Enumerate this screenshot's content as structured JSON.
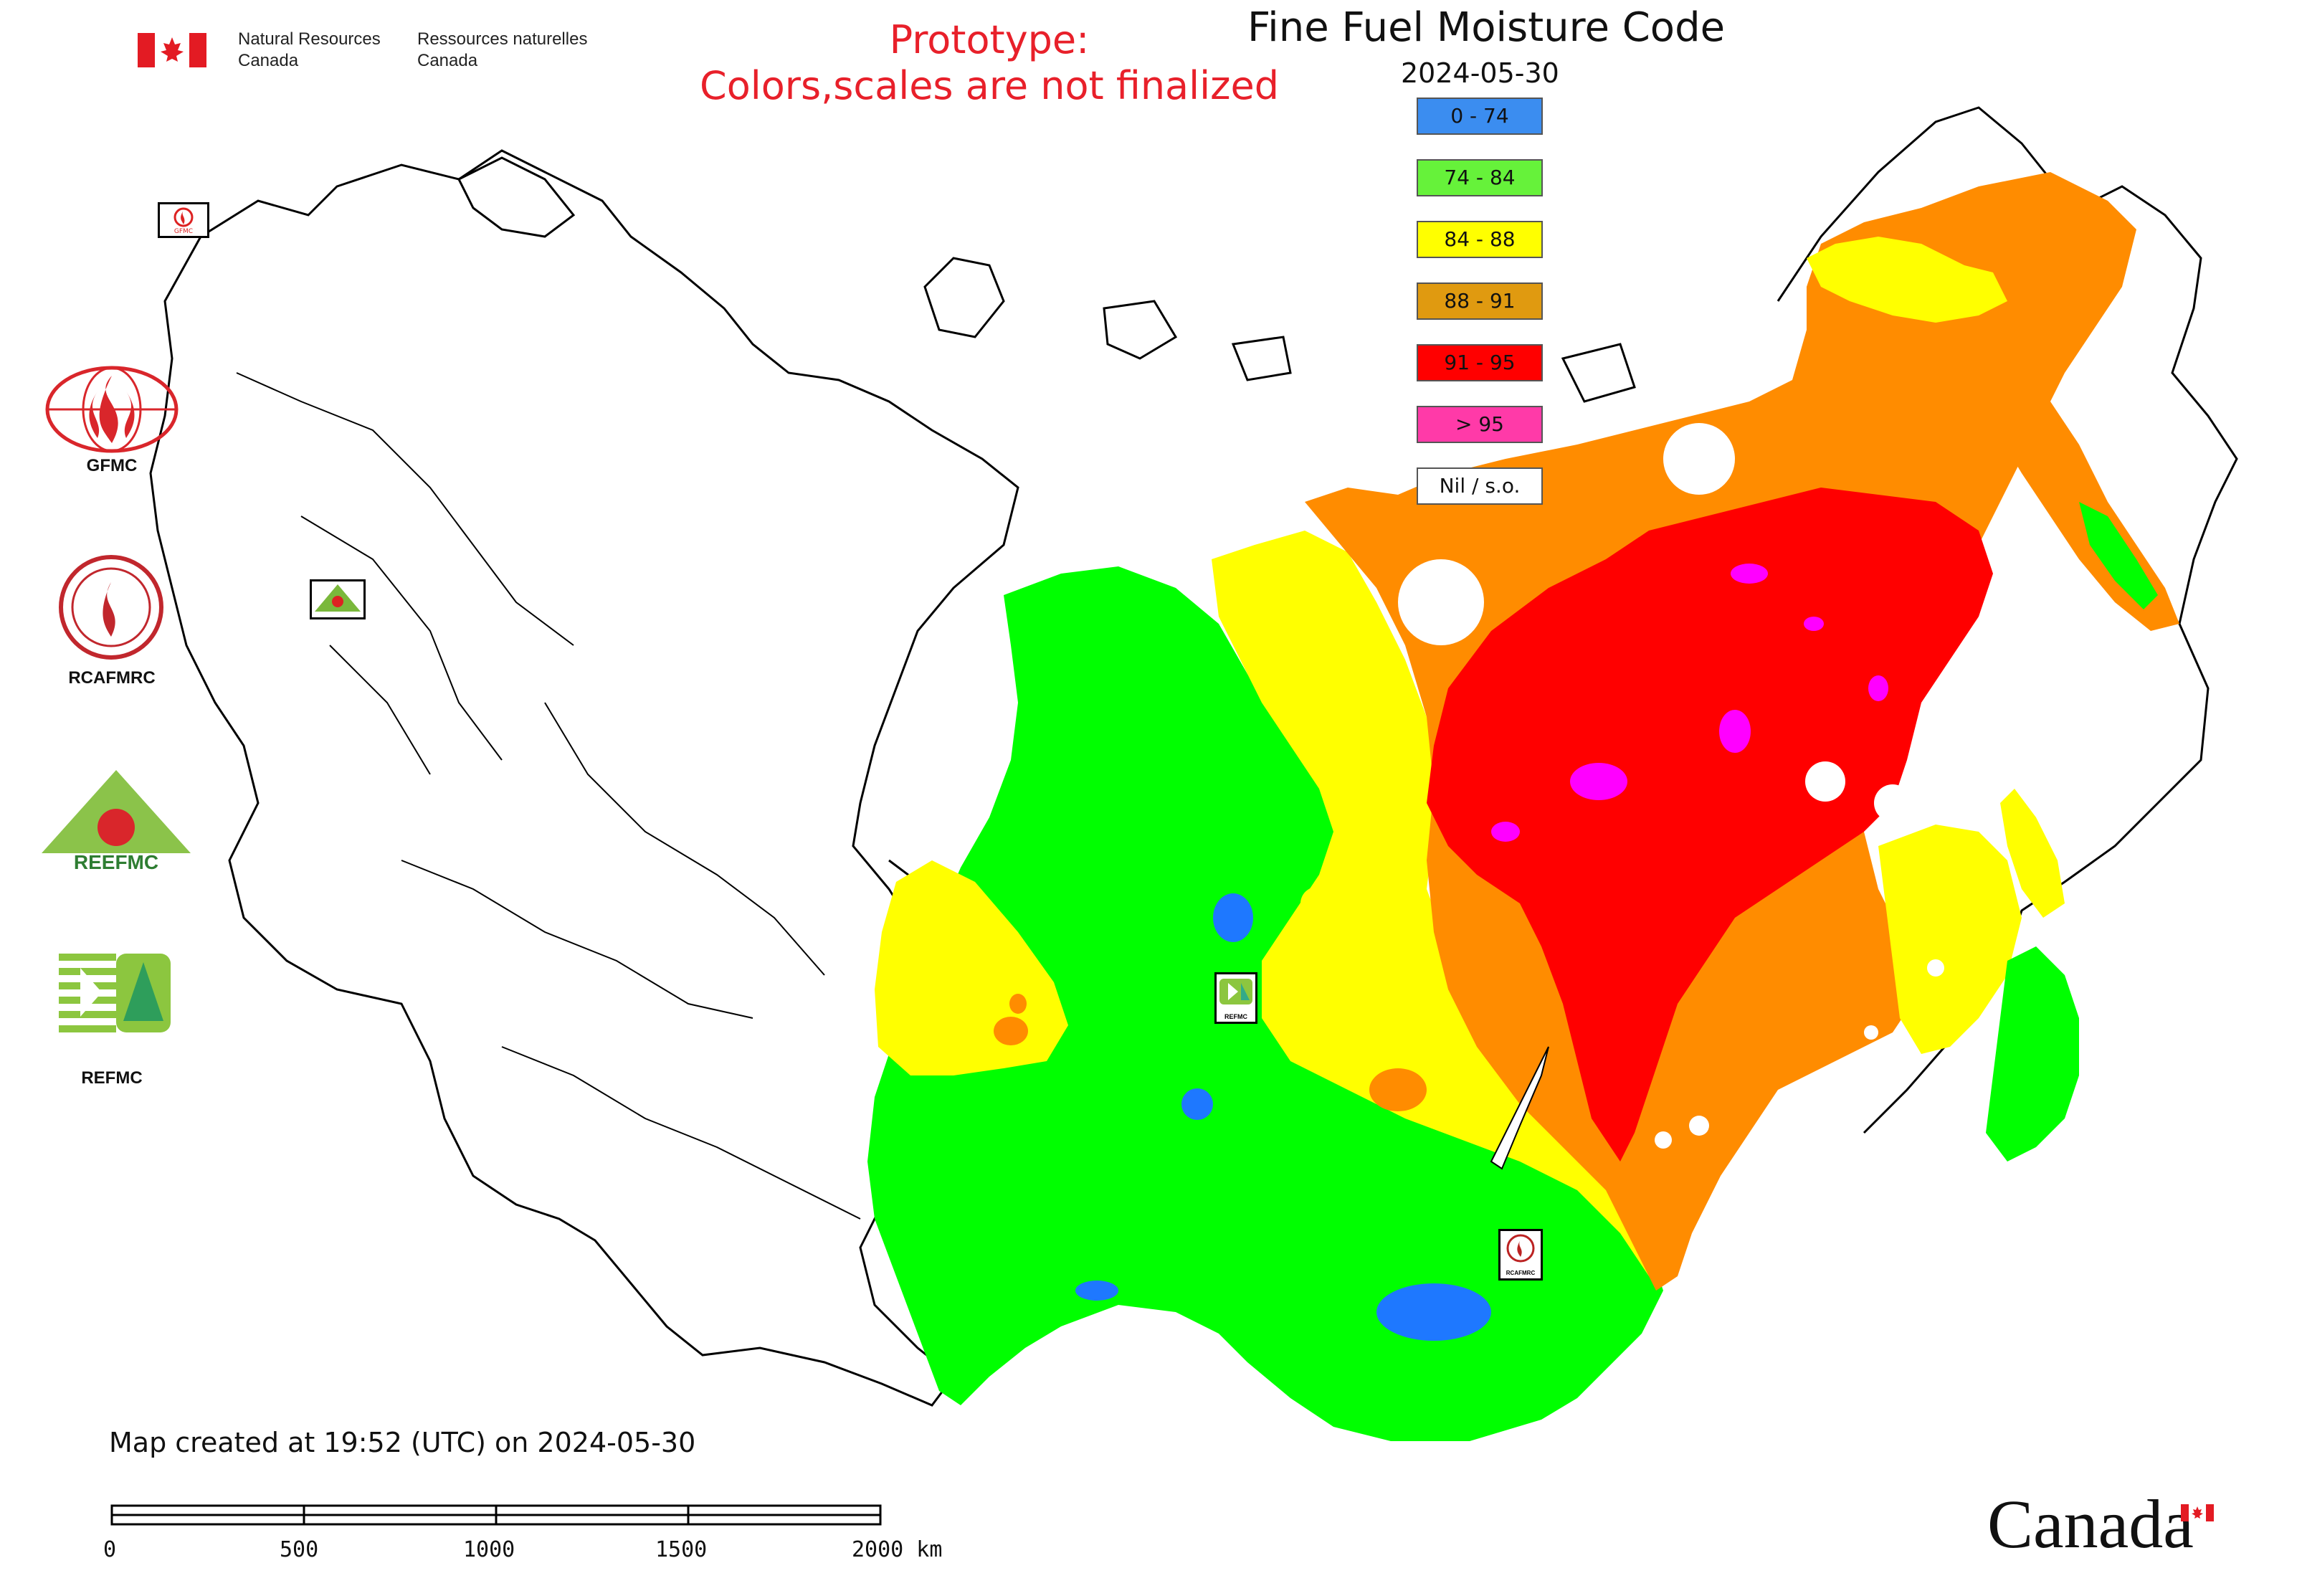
{
  "header": {
    "ministry_en_1": "Natural Resources",
    "ministry_en_2": "Canada",
    "ministry_fr_1": "Ressources naturelles",
    "ministry_fr_2": "Canada",
    "prototype_line1": "Prototype:",
    "prototype_line2": "Colors,scales are not finalized"
  },
  "map": {
    "title": "Fine Fuel Moisture Code",
    "date": "2024-05-30",
    "legend": [
      {
        "label": "0 - 74",
        "color": "#3b8df0"
      },
      {
        "label": "74 - 84",
        "color": "#66f23a"
      },
      {
        "label": "84 - 88",
        "color": "#ffff00"
      },
      {
        "label": "88 - 91",
        "color": "#e09a10"
      },
      {
        "label": "91 - 95",
        "color": "#ff0000"
      },
      {
        "label": "> 95",
        "color": "#ff3aa8"
      },
      {
        "label": "Nil / s.o.",
        "color": "#ffffff"
      }
    ],
    "colors": {
      "green": "#00ff00",
      "yellow": "#ffff00",
      "orange": "#ff8c00",
      "red": "#ff0000",
      "magenta": "#ff00ff",
      "blue": "#1e78ff"
    },
    "map_markers": [
      "REFMC",
      "RCAFMRC"
    ],
    "created_text": "Map created at 19:52 (UTC) on 2024-05-30"
  },
  "logos": {
    "gfmc": "GFMC",
    "rcafmrc": "RCAFMRC",
    "reefmc_text": "REEFMC",
    "refmc": "REFMC",
    "gfmc_small": "GFMC"
  },
  "scale_bar": {
    "ticks": [
      "0",
      "500",
      "1000",
      "1500",
      "2000 km"
    ]
  },
  "footer": {
    "wordmark": "Canada"
  }
}
